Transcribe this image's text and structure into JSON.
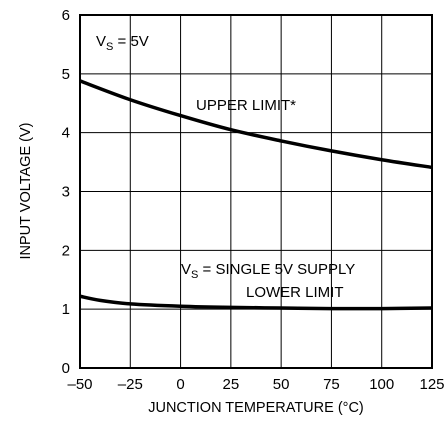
{
  "chart_data": {
    "type": "line",
    "xlabel": "JUNCTION TEMPERATURE (°C)",
    "ylabel": "INPUT VOLTAGE (V)",
    "xlim": [
      -50,
      125
    ],
    "ylim": [
      0,
      6
    ],
    "x_ticks": [
      "–50",
      "–25",
      "0",
      "25",
      "50",
      "75",
      "100",
      "125"
    ],
    "y_ticks": [
      "0",
      "1",
      "2",
      "3",
      "4",
      "5",
      "6"
    ],
    "grid": true,
    "annotations": {
      "vs_top": {
        "main": "V",
        "sub": "S",
        "rest": " = 5V"
      },
      "upper": "UPPER LIMIT*",
      "lower_line1": {
        "main": "V",
        "sub": "S",
        "rest": " = SINGLE 5V SUPPLY"
      },
      "lower_line2": "LOWER LIMIT"
    },
    "series": [
      {
        "x": [
          -50,
          -25,
          0,
          25,
          50,
          75,
          100,
          125
        ],
        "values": [
          4.88,
          4.56,
          4.29,
          4.05,
          3.86,
          3.69,
          3.54,
          3.41
        ]
      },
      {
        "x": [
          -50,
          -40,
          -25,
          0,
          25,
          50,
          75,
          100,
          125
        ],
        "values": [
          1.22,
          1.15,
          1.09,
          1.05,
          1.03,
          1.02,
          1.01,
          1.01,
          1.02
        ]
      }
    ]
  }
}
